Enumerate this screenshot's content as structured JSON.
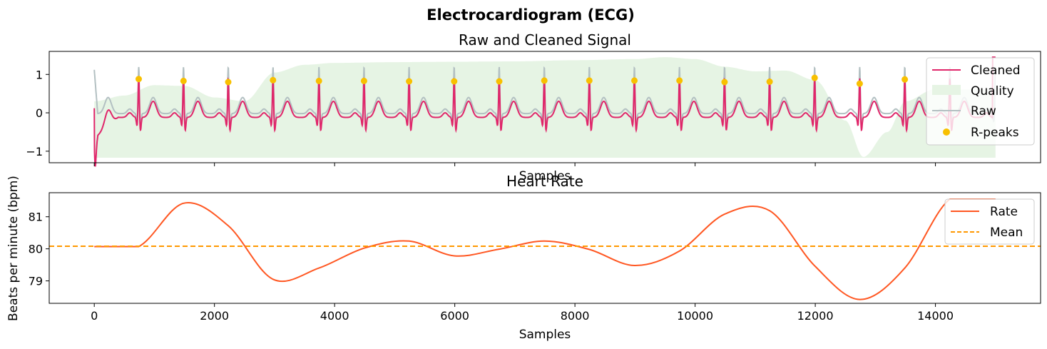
{
  "figure": {
    "suptitle": "Electrocardiogram (ECG)"
  },
  "colors": {
    "cleaned": "#e0266a",
    "quality": "#e6f4e4",
    "raw": "#b3c0c2",
    "rpeaks": "#f8c000",
    "rate": "#ff5722",
    "mean": "#ff9800"
  },
  "chart_data": [
    {
      "type": "line",
      "title": "Raw and Cleaned Signal",
      "xlabel": "Samples",
      "ylabel": "",
      "xlim": [
        -750,
        15750
      ],
      "ylim": [
        -1.3,
        1.6
      ],
      "yticks": [
        -1,
        0,
        1
      ],
      "ytick_labels": [
        "−1",
        "0",
        "1"
      ],
      "xticks": [
        0,
        2000,
        4000,
        6000,
        8000,
        10000,
        12000,
        14000
      ],
      "xtick_labels_visible": false,
      "grid": false,
      "legend": {
        "position": "upper right",
        "entries": [
          "Cleaned",
          "Quality",
          "Raw",
          "R-peaks"
        ]
      },
      "series": [
        {
          "name": "Cleaned",
          "kind": "line",
          "description_values": "ECG waveform, ~80 bpm, R-peak amplitude ~0.8-0.9, T-wave ~0.35, baseline ~ -0.1"
        },
        {
          "name": "Quality",
          "kind": "area",
          "x": [
            0,
            500,
            1000,
            1500,
            2000,
            2500,
            3000,
            3500,
            4000,
            5000,
            6000,
            7000,
            8000,
            9000,
            9500,
            10000,
            10500,
            11000,
            11500,
            12000,
            12500,
            12800,
            13200,
            13500,
            14000,
            15000
          ],
          "y": [
            0.3,
            0.45,
            0.72,
            0.7,
            0.4,
            0.3,
            1.05,
            1.25,
            1.3,
            1.32,
            1.33,
            1.34,
            1.37,
            1.4,
            1.45,
            1.4,
            1.2,
            1.08,
            1.1,
            0.85,
            -0.2,
            -1.15,
            -0.5,
            0.3,
            0.62,
            0.6
          ],
          "baseline": -1.17
        },
        {
          "name": "Raw",
          "kind": "line",
          "description_values": "ECG waveform offset ~ +0.1 above cleaned, R-peak amplitude ~1.15"
        },
        {
          "name": "R-peaks",
          "kind": "scatter",
          "x": [
            740,
            1485,
            2230,
            2975,
            3740,
            4490,
            5240,
            5990,
            6740,
            7490,
            8240,
            8990,
            9740,
            10490,
            11240,
            11990,
            12740,
            13490
          ],
          "y": [
            0.88,
            0.83,
            0.8,
            0.85,
            0.83,
            0.83,
            0.82,
            0.82,
            0.82,
            0.84,
            0.84,
            0.84,
            0.84,
            0.8,
            0.81,
            0.91,
            0.76,
            0.87
          ]
        }
      ]
    },
    {
      "type": "line",
      "title": "Heart Rate",
      "xlabel": "Samples",
      "ylabel": "Beats per minute (bpm)",
      "xlim": [
        -750,
        15750
      ],
      "ylim": [
        78.3,
        81.75
      ],
      "yticks": [
        79,
        80,
        81
      ],
      "ytick_labels": [
        "79",
        "80",
        "81"
      ],
      "xticks": [
        0,
        2000,
        4000,
        6000,
        8000,
        10000,
        12000,
        14000
      ],
      "xtick_labels": [
        "0",
        "2000",
        "4000",
        "6000",
        "8000",
        "10000",
        "12000",
        "14000"
      ],
      "grid": false,
      "legend": {
        "position": "upper right",
        "entries": [
          "Rate",
          "Mean"
        ]
      },
      "series": [
        {
          "name": "Rate",
          "kind": "line",
          "x": [
            0,
            740,
            1485,
            2230,
            2975,
            3740,
            4490,
            5240,
            5990,
            6740,
            7490,
            8240,
            8990,
            9740,
            10490,
            11240,
            11990,
            12740,
            13490,
            14240,
            15000
          ],
          "y": [
            80.07,
            80.07,
            81.42,
            80.72,
            79.05,
            79.4,
            80.02,
            80.24,
            79.78,
            79.99,
            80.24,
            79.98,
            79.48,
            79.93,
            81.08,
            81.19,
            79.47,
            78.42,
            79.4,
            81.55,
            81.55
          ]
        },
        {
          "name": "Mean",
          "kind": "hline",
          "y": 80.08
        }
      ]
    }
  ]
}
